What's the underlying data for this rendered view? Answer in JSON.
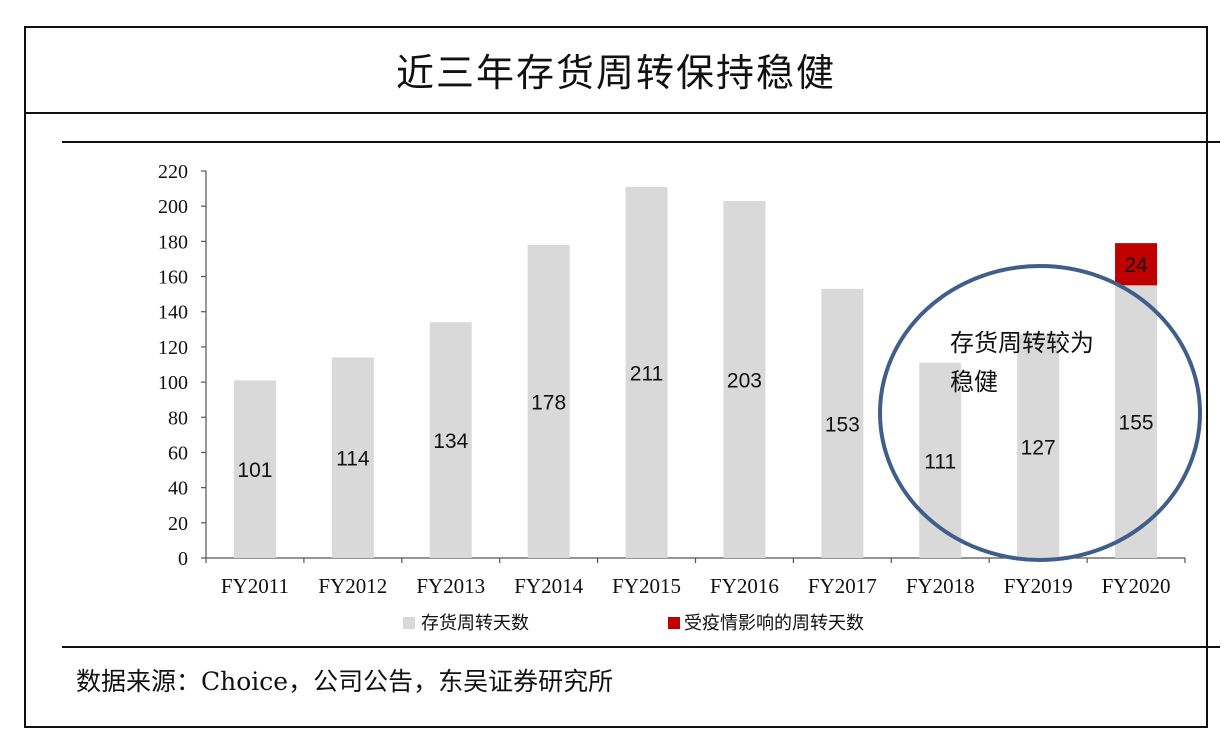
{
  "header": {
    "title": "近三年存货周转保持稳健"
  },
  "footer": {
    "source": "数据来源：Choice，公司公告，东吴证券研究所"
  },
  "annotation": {
    "line1": "存货周转较为",
    "line2": "稳健"
  },
  "colors": {
    "base_bar": "#d9d9d9",
    "covid_bar": "#c00000",
    "circle": "#3f5f8a"
  },
  "chart_data": {
    "type": "bar",
    "stacked": true,
    "categories": [
      "FY2011",
      "FY2012",
      "FY2013",
      "FY2014",
      "FY2015",
      "FY2016",
      "FY2017",
      "FY2018",
      "FY2019",
      "FY2020"
    ],
    "series": [
      {
        "name": "存货周转天数",
        "values": [
          101,
          114,
          134,
          178,
          211,
          203,
          153,
          111,
          127,
          155
        ]
      },
      {
        "name": "受疫情影响的周转天数",
        "values": [
          0,
          0,
          0,
          0,
          0,
          0,
          0,
          0,
          0,
          24
        ]
      }
    ],
    "data_labels": {
      "base": [
        "101",
        "114",
        "134",
        "178",
        "211",
        "203",
        "153",
        "111",
        "127",
        "155"
      ],
      "covid": [
        "",
        "",
        "",
        "",
        "",
        "",
        "",
        "",
        "",
        "24"
      ]
    },
    "ylim": [
      0,
      220
    ],
    "yticks": [
      "0",
      "20",
      "40",
      "60",
      "80",
      "100",
      "120",
      "140",
      "160",
      "180",
      "200",
      "220"
    ],
    "legend_position": "bottom",
    "grid": false
  }
}
